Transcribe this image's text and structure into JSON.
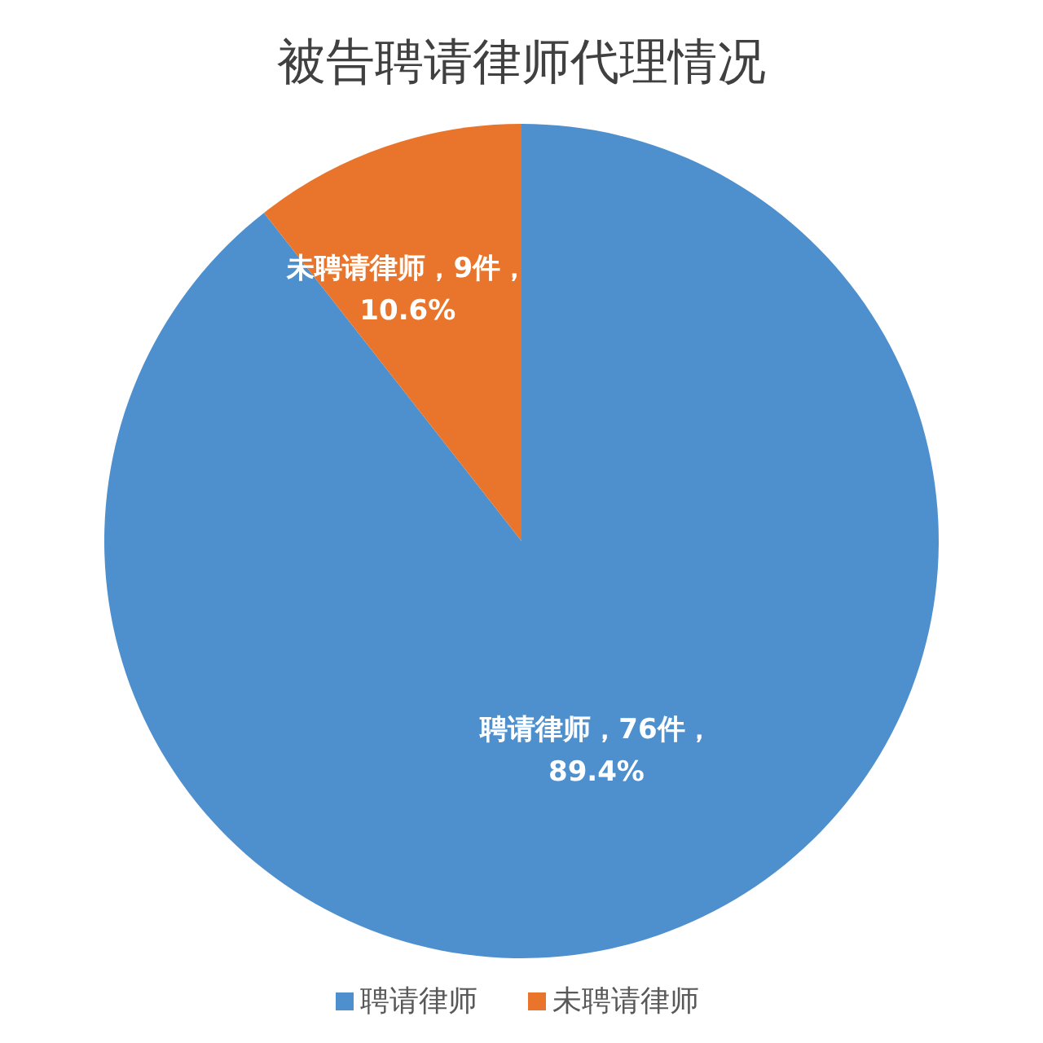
{
  "chart_data": {
    "type": "pie",
    "title": "被告聘请律师代理情况",
    "categories": [
      "聘请律师",
      "未聘请律师"
    ],
    "values": [
      76,
      9
    ],
    "colors": [
      "#4e8fce",
      "#e8752b"
    ],
    "value_labels": [
      "聘请律师，76件，89.4%",
      "未聘请律师，9件，10.6%"
    ],
    "legend": "bottom"
  }
}
